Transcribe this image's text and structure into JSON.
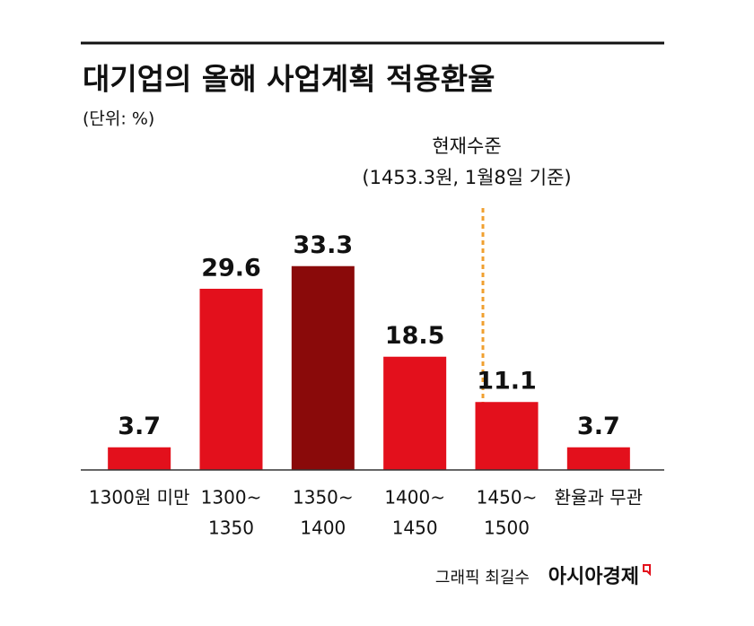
{
  "chart_data": {
    "type": "bar",
    "title": "대기업의 올해 사업계획 적용환율",
    "subtitle": "(단위: %)",
    "categories": [
      [
        "1300원 미만"
      ],
      [
        "1300~",
        "1350"
      ],
      [
        "1350~",
        "1400"
      ],
      [
        "1400~",
        "1450"
      ],
      [
        "1450~",
        "1500"
      ],
      [
        "환율과 무관"
      ]
    ],
    "values": [
      3.7,
      29.6,
      33.3,
      18.5,
      11.1,
      3.7
    ],
    "colors": [
      "#e3101c",
      "#e3101c",
      "#8a0a0a",
      "#e3101c",
      "#e3101c",
      "#e3101c"
    ],
    "ylim": [
      0,
      40
    ],
    "annotation": [
      "현재수준",
      "(1453.3원, 1월8일 기준)"
    ],
    "credit": "그래픽 최길수",
    "source": "아시아경제"
  }
}
